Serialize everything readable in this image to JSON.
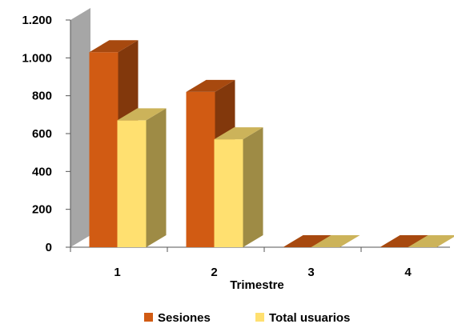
{
  "chart_data": {
    "type": "bar",
    "three_d": true,
    "categories": [
      "1",
      "2",
      "3",
      "4"
    ],
    "series": [
      {
        "name": "Sesiones",
        "values": [
          1030,
          820,
          0,
          0
        ],
        "color": "#D15B13"
      },
      {
        "name": "Total usuarios",
        "values": [
          670,
          570,
          0,
          0
        ],
        "color": "#FFE070"
      }
    ],
    "title": "",
    "xlabel": "Trimestre",
    "ylabel": "",
    "ylim": [
      0,
      1200
    ],
    "yticks": [
      0,
      200,
      400,
      600,
      800,
      1000,
      1200
    ],
    "ytick_labels": [
      "0",
      "200",
      "400",
      "600",
      "800",
      "1.000",
      "1.200"
    ],
    "grid": false,
    "legend_position": "bottom",
    "wall_color": "#A6A6A6"
  }
}
